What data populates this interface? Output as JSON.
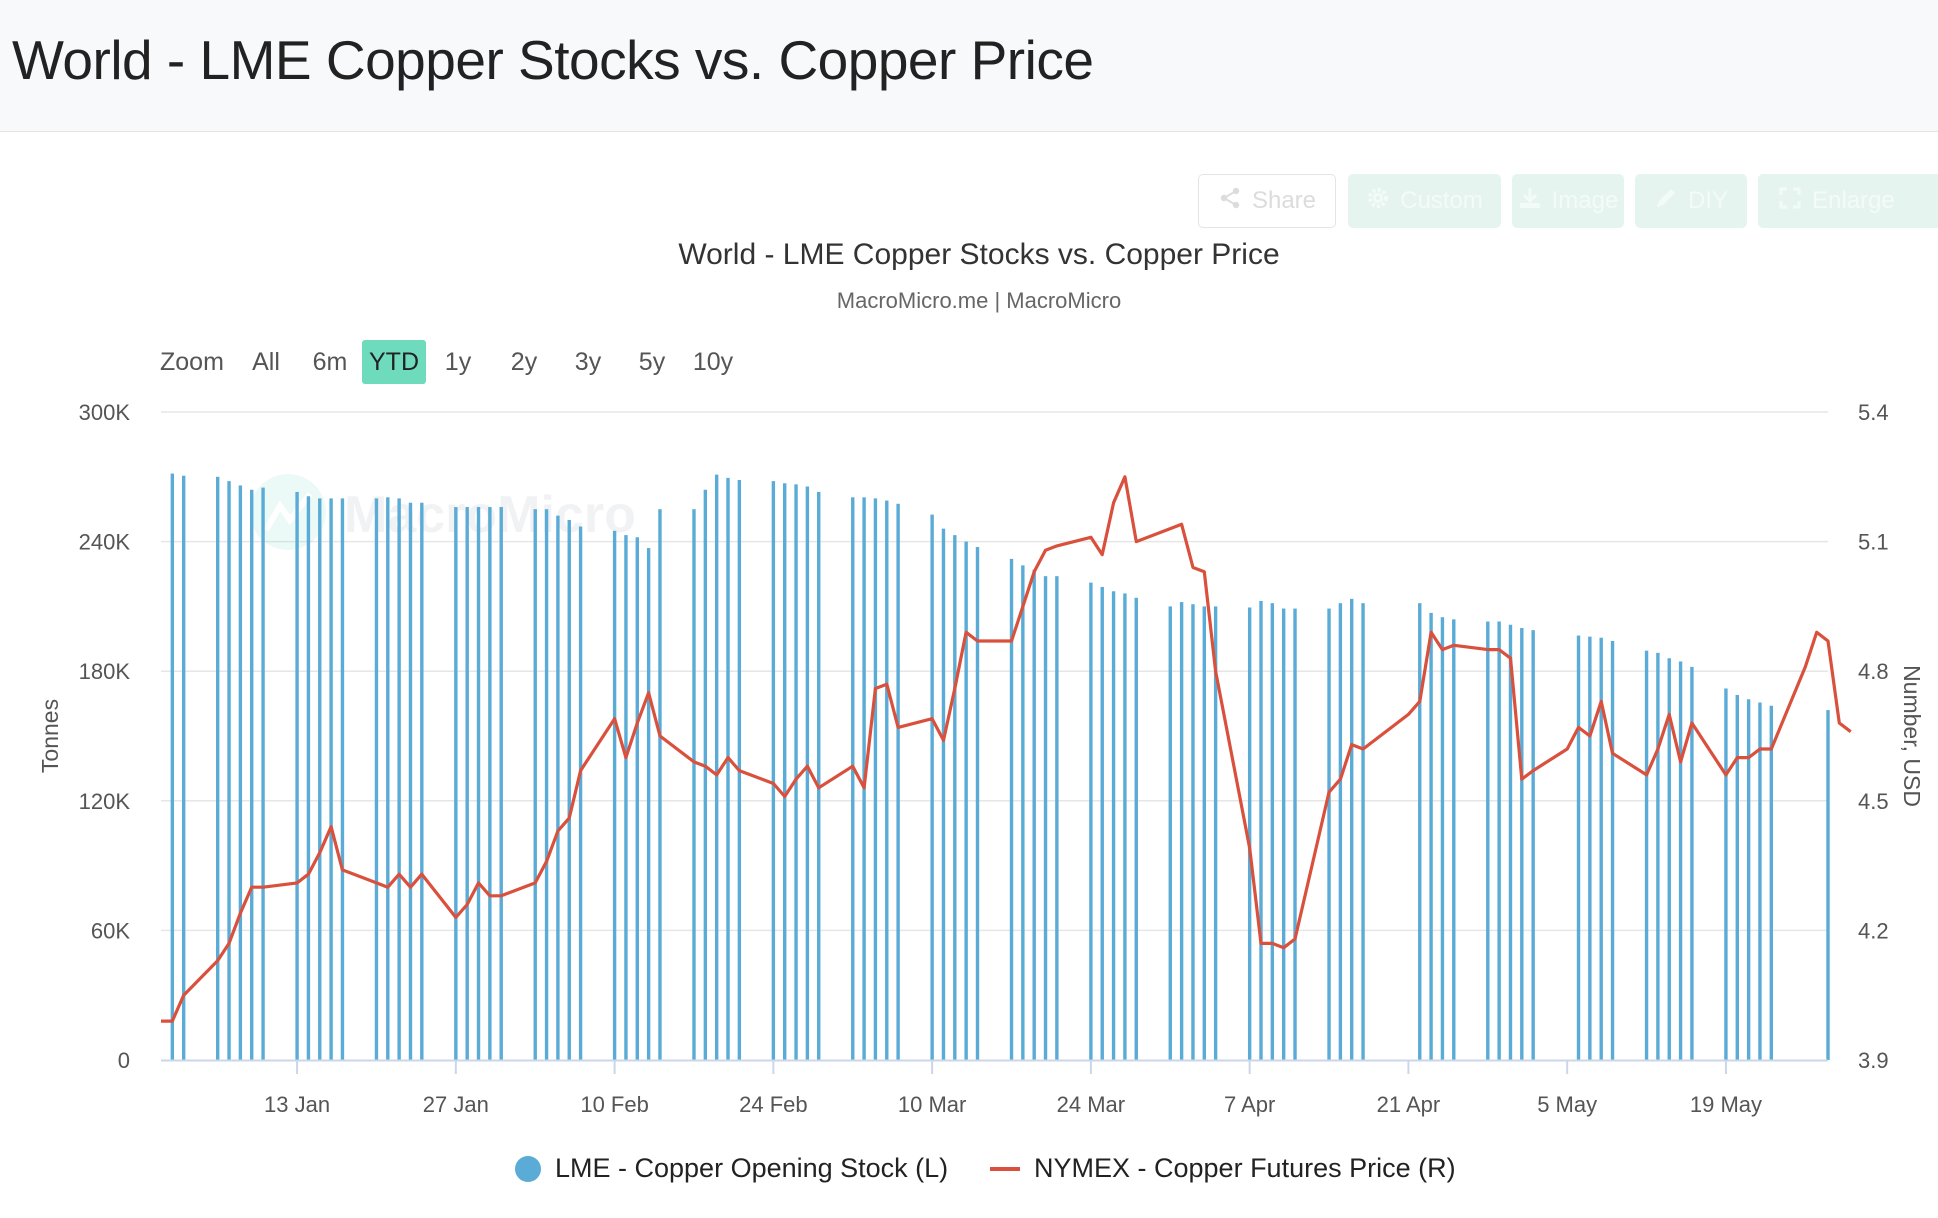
{
  "page": {
    "title": "World - LME Copper Stocks vs. Copper Price"
  },
  "toolbar": {
    "share": "Share",
    "custom": "Custom",
    "image": "Image",
    "diy": "DIY",
    "enlarge": "Enlarge"
  },
  "range_selector": {
    "label": "Zoom",
    "options": [
      "All",
      "6m",
      "YTD",
      "1y",
      "2y",
      "3y",
      "5y",
      "10y"
    ],
    "active": "YTD"
  },
  "watermark": "MacroMicro",
  "colors": {
    "stock": "#5aabd6",
    "price": "#d9503c",
    "accent": "#6fdbbd"
  },
  "chart_data": {
    "type": "bar",
    "title": "World - LME Copper Stocks vs. Copper Price",
    "subtitle": "MacroMicro.me | MacroMicro",
    "x_tick_labels": [
      "13 Jan",
      "27 Jan",
      "10 Feb",
      "24 Feb",
      "10 Mar",
      "24 Mar",
      "7 Apr",
      "21 Apr",
      "5 May",
      "19 May"
    ],
    "x_range": [
      "2025-01-01",
      "2025-05-28"
    ],
    "y_left": {
      "label": "Tonnes",
      "ticks": [
        "0",
        "60K",
        "120K",
        "180K",
        "240K",
        "300K"
      ],
      "range": [
        0,
        300000
      ]
    },
    "y_right": {
      "label": "Number, USD",
      "ticks": [
        "3.9",
        "4.2",
        "4.5",
        "4.8",
        "5.1",
        "5.4"
      ],
      "range": [
        3.9,
        5.4
      ]
    },
    "grid": true,
    "legend": {
      "position": "bottom-center",
      "stock": "LME - Copper Opening Stock (L)",
      "price": "NYMEX - Copper Futures Price (R)"
    },
    "stocks": {
      "name": "LME - Copper Opening Stock (L)",
      "axis": "left",
      "points": [
        [
          "2025-01-02",
          271500
        ],
        [
          "2025-01-03",
          270500
        ],
        [
          "2025-01-06",
          270000
        ],
        [
          "2025-01-07",
          268000
        ],
        [
          "2025-01-08",
          266000
        ],
        [
          "2025-01-09",
          264000
        ],
        [
          "2025-01-10",
          265000
        ],
        [
          "2025-01-13",
          263000
        ],
        [
          "2025-01-14",
          261000
        ],
        [
          "2025-01-15",
          260000
        ],
        [
          "2025-01-16",
          260000
        ],
        [
          "2025-01-17",
          260000
        ],
        [
          "2025-01-20",
          260000
        ],
        [
          "2025-01-21",
          260500
        ],
        [
          "2025-01-22",
          260000
        ],
        [
          "2025-01-23",
          258000
        ],
        [
          "2025-01-24",
          258000
        ],
        [
          "2025-01-27",
          256000
        ],
        [
          "2025-01-28",
          256000
        ],
        [
          "2025-01-29",
          256000
        ],
        [
          "2025-01-30",
          256000
        ],
        [
          "2025-01-31",
          256000
        ],
        [
          "2025-02-03",
          255000
        ],
        [
          "2025-02-04",
          255000
        ],
        [
          "2025-02-05",
          252000
        ],
        [
          "2025-02-06",
          250000
        ],
        [
          "2025-02-07",
          247000
        ],
        [
          "2025-02-10",
          245000
        ],
        [
          "2025-02-11",
          243000
        ],
        [
          "2025-02-12",
          242000
        ],
        [
          "2025-02-13",
          237000
        ],
        [
          "2025-02-14",
          255000
        ],
        [
          "2025-02-17",
          255000
        ],
        [
          "2025-02-18",
          264000
        ],
        [
          "2025-02-19",
          271000
        ],
        [
          "2025-02-20",
          269500
        ],
        [
          "2025-02-21",
          268500
        ],
        [
          "2025-02-24",
          268000
        ],
        [
          "2025-02-25",
          267000
        ],
        [
          "2025-02-26",
          266500
        ],
        [
          "2025-02-27",
          265500
        ],
        [
          "2025-02-28",
          263000
        ],
        [
          "2025-03-03",
          260500
        ],
        [
          "2025-03-04",
          260500
        ],
        [
          "2025-03-05",
          260000
        ],
        [
          "2025-03-06",
          259000
        ],
        [
          "2025-03-07",
          257500
        ],
        [
          "2025-03-10",
          252500
        ],
        [
          "2025-03-11",
          246000
        ],
        [
          "2025-03-12",
          243000
        ],
        [
          "2025-03-13",
          240000
        ],
        [
          "2025-03-14",
          237500
        ],
        [
          "2025-03-17",
          232000
        ],
        [
          "2025-03-18",
          229000
        ],
        [
          "2025-03-19",
          227000
        ],
        [
          "2025-03-20",
          224000
        ],
        [
          "2025-03-21",
          224000
        ],
        [
          "2025-03-24",
          221000
        ],
        [
          "2025-03-25",
          219000
        ],
        [
          "2025-03-26",
          217000
        ],
        [
          "2025-03-27",
          216000
        ],
        [
          "2025-03-28",
          214000
        ],
        [
          "2025-03-31",
          210000
        ],
        [
          "2025-04-01",
          212000
        ],
        [
          "2025-04-02",
          211000
        ],
        [
          "2025-04-03",
          210000
        ],
        [
          "2025-04-04",
          210000
        ],
        [
          "2025-04-07",
          209500
        ],
        [
          "2025-04-08",
          212500
        ],
        [
          "2025-04-09",
          211500
        ],
        [
          "2025-04-10",
          209000
        ],
        [
          "2025-04-11",
          209000
        ],
        [
          "2025-04-14",
          209000
        ],
        [
          "2025-04-15",
          211500
        ],
        [
          "2025-04-16",
          213500
        ],
        [
          "2025-04-17",
          211500
        ],
        [
          "2025-04-22",
          211500
        ],
        [
          "2025-04-23",
          207000
        ],
        [
          "2025-04-24",
          205000
        ],
        [
          "2025-04-25",
          204000
        ],
        [
          "2025-04-28",
          203000
        ],
        [
          "2025-04-29",
          203000
        ],
        [
          "2025-04-30",
          201500
        ],
        [
          "2025-05-01",
          200000
        ],
        [
          "2025-05-02",
          199000
        ],
        [
          "2025-05-06",
          196500
        ],
        [
          "2025-05-07",
          196000
        ],
        [
          "2025-05-08",
          195500
        ],
        [
          "2025-05-09",
          194000
        ],
        [
          "2025-05-12",
          189500
        ],
        [
          "2025-05-13",
          188500
        ],
        [
          "2025-05-14",
          186000
        ],
        [
          "2025-05-15",
          184500
        ],
        [
          "2025-05-16",
          182000
        ],
        [
          "2025-05-19",
          172000
        ],
        [
          "2025-05-20",
          169000
        ],
        [
          "2025-05-21",
          167000
        ],
        [
          "2025-05-22",
          165500
        ],
        [
          "2025-05-23",
          164000
        ],
        [
          "2025-05-28",
          162000
        ]
      ]
    },
    "price": {
      "name": "NYMEX - Copper Futures Price (R)",
      "axis": "right",
      "points": [
        [
          "2025-01-01",
          3.99
        ],
        [
          "2025-01-02",
          3.99
        ],
        [
          "2025-01-03",
          4.05
        ],
        [
          "2025-01-06",
          4.13
        ],
        [
          "2025-01-07",
          4.17
        ],
        [
          "2025-01-08",
          4.24
        ],
        [
          "2025-01-09",
          4.3
        ],
        [
          "2025-01-10",
          4.3
        ],
        [
          "2025-01-13",
          4.31
        ],
        [
          "2025-01-14",
          4.33
        ],
        [
          "2025-01-15",
          4.38
        ],
        [
          "2025-01-16",
          4.44
        ],
        [
          "2025-01-17",
          4.34
        ],
        [
          "2025-01-20",
          4.31
        ],
        [
          "2025-01-21",
          4.3
        ],
        [
          "2025-01-22",
          4.33
        ],
        [
          "2025-01-23",
          4.3
        ],
        [
          "2025-01-24",
          4.33
        ],
        [
          "2025-01-27",
          4.23
        ],
        [
          "2025-01-28",
          4.26
        ],
        [
          "2025-01-29",
          4.31
        ],
        [
          "2025-01-30",
          4.28
        ],
        [
          "2025-01-31",
          4.28
        ],
        [
          "2025-02-03",
          4.31
        ],
        [
          "2025-02-04",
          4.36
        ],
        [
          "2025-02-05",
          4.43
        ],
        [
          "2025-02-06",
          4.46
        ],
        [
          "2025-02-07",
          4.57
        ],
        [
          "2025-02-10",
          4.69
        ],
        [
          "2025-02-11",
          4.6
        ],
        [
          "2025-02-12",
          4.68
        ],
        [
          "2025-02-13",
          4.75
        ],
        [
          "2025-02-14",
          4.65
        ],
        [
          "2025-02-17",
          4.59
        ],
        [
          "2025-02-18",
          4.58
        ],
        [
          "2025-02-19",
          4.56
        ],
        [
          "2025-02-20",
          4.6
        ],
        [
          "2025-02-21",
          4.57
        ],
        [
          "2025-02-24",
          4.54
        ],
        [
          "2025-02-25",
          4.51
        ],
        [
          "2025-02-26",
          4.55
        ],
        [
          "2025-02-27",
          4.58
        ],
        [
          "2025-02-28",
          4.53
        ],
        [
          "2025-03-03",
          4.58
        ],
        [
          "2025-03-04",
          4.53
        ],
        [
          "2025-03-05",
          4.76
        ],
        [
          "2025-03-06",
          4.77
        ],
        [
          "2025-03-07",
          4.67
        ],
        [
          "2025-03-10",
          4.69
        ],
        [
          "2025-03-11",
          4.64
        ],
        [
          "2025-03-12",
          4.76
        ],
        [
          "2025-03-13",
          4.89
        ],
        [
          "2025-03-14",
          4.87
        ],
        [
          "2025-03-17",
          4.87
        ],
        [
          "2025-03-18",
          4.95
        ],
        [
          "2025-03-19",
          5.03
        ],
        [
          "2025-03-20",
          5.08
        ],
        [
          "2025-03-21",
          5.09
        ],
        [
          "2025-03-24",
          5.11
        ],
        [
          "2025-03-25",
          5.07
        ],
        [
          "2025-03-26",
          5.19
        ],
        [
          "2025-03-27",
          5.25
        ],
        [
          "2025-03-28",
          5.1
        ],
        [
          "2025-03-31",
          5.13
        ],
        [
          "2025-04-01",
          5.14
        ],
        [
          "2025-04-02",
          5.04
        ],
        [
          "2025-04-03",
          5.03
        ],
        [
          "2025-04-04",
          4.8
        ],
        [
          "2025-04-07",
          4.39
        ],
        [
          "2025-04-08",
          4.17
        ],
        [
          "2025-04-09",
          4.17
        ],
        [
          "2025-04-10",
          4.16
        ],
        [
          "2025-04-11",
          4.18
        ],
        [
          "2025-04-14",
          4.52
        ],
        [
          "2025-04-15",
          4.55
        ],
        [
          "2025-04-16",
          4.63
        ],
        [
          "2025-04-17",
          4.62
        ],
        [
          "2025-04-21",
          4.7
        ],
        [
          "2025-04-22",
          4.73
        ],
        [
          "2025-04-23",
          4.89
        ],
        [
          "2025-04-24",
          4.85
        ],
        [
          "2025-04-25",
          4.86
        ],
        [
          "2025-04-28",
          4.85
        ],
        [
          "2025-04-29",
          4.85
        ],
        [
          "2025-04-30",
          4.83
        ],
        [
          "2025-05-01",
          4.55
        ],
        [
          "2025-05-02",
          4.57
        ],
        [
          "2025-05-05",
          4.62
        ],
        [
          "2025-05-06",
          4.67
        ],
        [
          "2025-05-07",
          4.65
        ],
        [
          "2025-05-08",
          4.73
        ],
        [
          "2025-05-09",
          4.61
        ],
        [
          "2025-05-12",
          4.56
        ],
        [
          "2025-05-13",
          4.62
        ],
        [
          "2025-05-14",
          4.7
        ],
        [
          "2025-05-15",
          4.59
        ],
        [
          "2025-05-16",
          4.68
        ],
        [
          "2025-05-19",
          4.56
        ],
        [
          "2025-05-20",
          4.6
        ],
        [
          "2025-05-21",
          4.6
        ],
        [
          "2025-05-22",
          4.62
        ],
        [
          "2025-05-23",
          4.62
        ],
        [
          "2025-05-26",
          4.81
        ],
        [
          "2025-05-27",
          4.89
        ],
        [
          "2025-05-28",
          4.87
        ],
        [
          "2025-05-29",
          4.68
        ],
        [
          "2025-05-30",
          4.66
        ]
      ]
    }
  }
}
